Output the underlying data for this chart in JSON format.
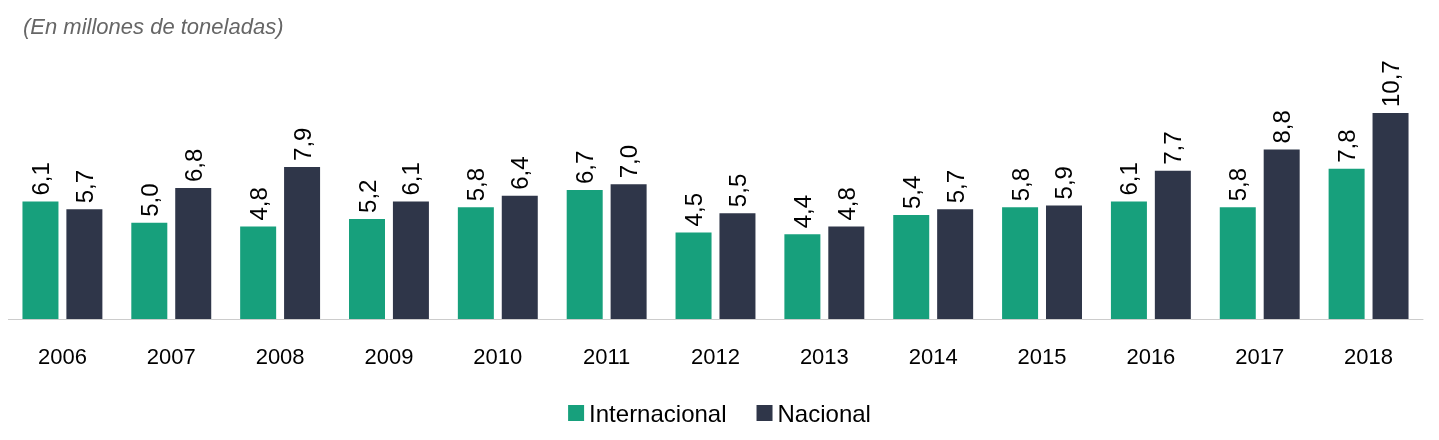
{
  "chart_data": {
    "type": "bar",
    "title": "(En millones de toneladas)",
    "categories": [
      "2006",
      "2007",
      "2008",
      "2009",
      "2010",
      "2011",
      "2012",
      "2013",
      "2014",
      "2015",
      "2016",
      "2017",
      "2018"
    ],
    "series": [
      {
        "name": "Internacional",
        "color": "#17a07c",
        "values": [
          6.1,
          5.0,
          4.8,
          5.2,
          5.8,
          6.7,
          4.5,
          4.4,
          5.4,
          5.8,
          6.1,
          5.8,
          7.8
        ],
        "value_labels": [
          "6,1",
          "5,0",
          "4,8",
          "5,2",
          "5,8",
          "6,7",
          "4,5",
          "4,4",
          "5,4",
          "5,8",
          "6,1",
          "5,8",
          "7,8"
        ]
      },
      {
        "name": "Nacional",
        "color": "#2f3649",
        "values": [
          5.7,
          6.8,
          7.9,
          6.1,
          6.4,
          7.0,
          5.5,
          4.8,
          5.7,
          5.9,
          7.7,
          8.8,
          10.7
        ],
        "value_labels": [
          "5,7",
          "6,8",
          "7,9",
          "6,1",
          "6,4",
          "7,0",
          "5,5",
          "4,8",
          "5,7",
          "5,9",
          "7,7",
          "8,8",
          "10,7"
        ]
      }
    ],
    "legend": "bottom"
  }
}
